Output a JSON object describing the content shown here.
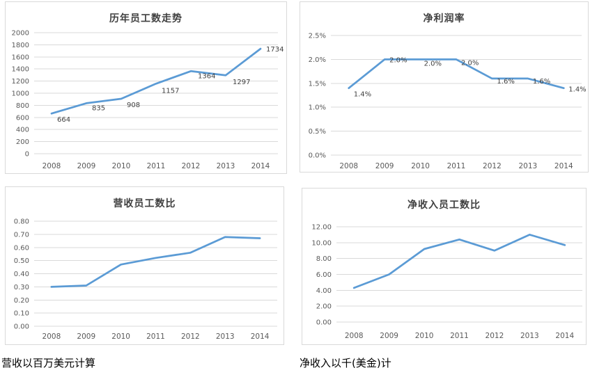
{
  "captions": {
    "left": "营收以百万美元计算",
    "right": "净收入以千(美金)计"
  },
  "colors": {
    "line": "#5b9bd5",
    "grid": "#d9d9d9",
    "panel_border": "#d9d9d9",
    "tick_label": "#595959",
    "axis_label": "#595959",
    "data_label": "#404040",
    "title": "#404040",
    "caption": "#000000",
    "background": "#ffffff"
  },
  "chart_data": [
    {
      "type": "line",
      "title": "历年员工数走势",
      "categories": [
        "2008",
        "2009",
        "2010",
        "2011",
        "2012",
        "2013",
        "2014"
      ],
      "values": [
        664,
        835,
        908,
        1157,
        1364,
        1297,
        1734
      ],
      "data_labels": [
        "664",
        "835",
        "908",
        "1157",
        "1364",
        "1297",
        "1734"
      ],
      "ylim": [
        0,
        2000
      ],
      "yticks": [
        "2000",
        "1800",
        "1600",
        "1400",
        "1200",
        "1000",
        "800",
        "600",
        "400",
        "200",
        "0"
      ],
      "xlabel": "",
      "ylabel": "",
      "grid": true,
      "legend": false
    },
    {
      "type": "line",
      "title": "净利润率",
      "categories": [
        "2008",
        "2009",
        "2010",
        "2011",
        "2012",
        "2013",
        "2014"
      ],
      "values": [
        1.4,
        2.0,
        2.0,
        2.0,
        1.6,
        1.6,
        1.4
      ],
      "data_labels": [
        "1.4%",
        "2.0%",
        "2.0%",
        "2.0%",
        "1.6%",
        "1.6%",
        "1.4%"
      ],
      "ylim": [
        0,
        2.5
      ],
      "yticks": [
        "2.5%",
        "2.0%",
        "1.5%",
        "1.0%",
        "0.5%",
        "0.0%"
      ],
      "xlabel": "",
      "ylabel": "",
      "grid": true,
      "legend": false
    },
    {
      "type": "line",
      "title": "营收员工数比",
      "categories": [
        "2008",
        "2009",
        "2010",
        "2011",
        "2012",
        "2013",
        "2014"
      ],
      "values": [
        0.3,
        0.31,
        0.47,
        0.52,
        0.56,
        0.68,
        0.67
      ],
      "data_labels": null,
      "ylim": [
        0,
        0.8
      ],
      "yticks": [
        "0.80",
        "0.70",
        "0.60",
        "0.50",
        "0.40",
        "0.30",
        "0.20",
        "0.10",
        "0.00"
      ],
      "xlabel": "",
      "ylabel": "",
      "grid": true,
      "legend": false
    },
    {
      "type": "line",
      "title": "净收入员工数比",
      "categories": [
        "2008",
        "2009",
        "2010",
        "2011",
        "2012",
        "2013",
        "2014"
      ],
      "values": [
        4.3,
        6.0,
        9.2,
        10.4,
        9.0,
        11.0,
        9.7
      ],
      "data_labels": null,
      "ylim": [
        0,
        12
      ],
      "yticks": [
        "12.00",
        "10.00",
        "8.00",
        "6.00",
        "4.00",
        "2.00",
        "0.00"
      ],
      "xlabel": "",
      "ylabel": "",
      "grid": true,
      "legend": false
    }
  ]
}
